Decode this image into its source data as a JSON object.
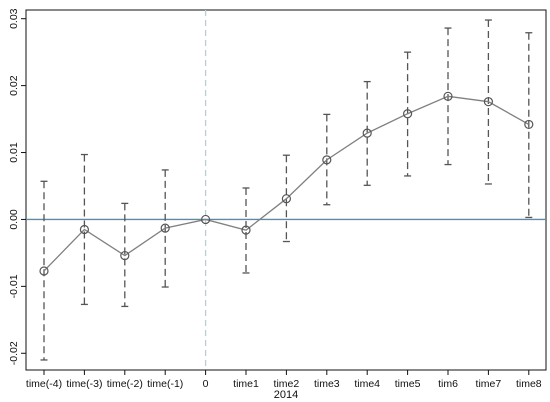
{
  "chart_data": {
    "type": "scatter",
    "title": "",
    "xlabel": "2014",
    "ylabel": "",
    "categories": [
      "time(-4)",
      "time(-3)",
      "time(-2)",
      "time(-1)",
      "0",
      "time1",
      "time2",
      "time3",
      "time4",
      "time5",
      "tim6",
      "time7",
      "time8"
    ],
    "estimates": [
      -0.0077,
      -0.0015,
      -0.0054,
      -0.0013,
      0.0,
      -0.0016,
      0.0031,
      0.0089,
      0.0129,
      0.0158,
      0.0184,
      0.0176,
      0.0142
    ],
    "ci_lower": [
      -0.021,
      -0.0127,
      -0.013,
      -0.0101,
      null,
      -0.008,
      -0.0033,
      0.0022,
      0.0051,
      0.0065,
      0.0082,
      0.0053,
      0.0003
    ],
    "ci_upper": [
      0.0057,
      0.0097,
      0.0024,
      0.0074,
      null,
      0.0047,
      0.0096,
      0.0157,
      0.0206,
      0.025,
      0.0286,
      0.0298,
      0.0279
    ],
    "ylim": [
      -0.0225,
      0.0313
    ],
    "yticks": [
      -0.02,
      -0.01,
      0.0,
      0.01,
      0.02,
      0.03
    ],
    "ytick_labels": [
      "-0.02",
      "-0.01",
      "0.00",
      "0.01",
      "0.02",
      "0.03"
    ],
    "reference_line_y": 0.0,
    "reference_line_x": "0",
    "grid": false,
    "legend": "none",
    "colors": {
      "line": "#808080",
      "marker": "#555555",
      "error_bar": "#555555",
      "zero_line": "#5f8aa0",
      "event_line": "#b8cfd6",
      "axis": "#111111"
    }
  }
}
